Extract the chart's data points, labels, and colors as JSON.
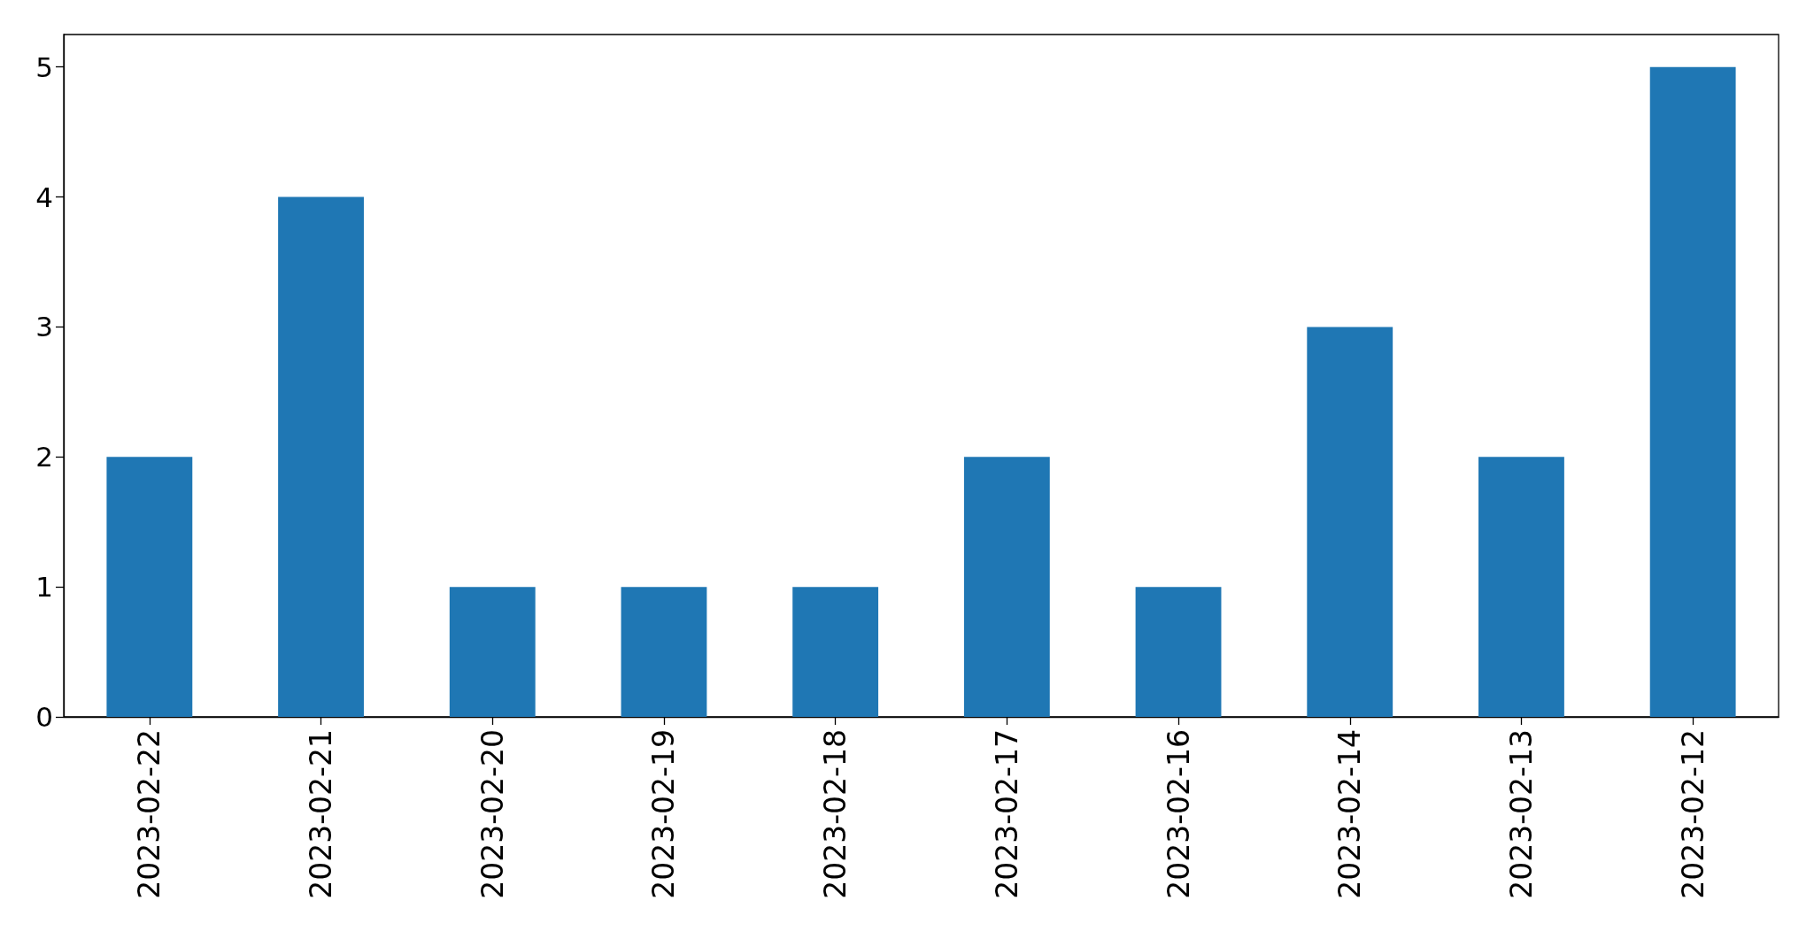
{
  "chart_data": {
    "type": "bar",
    "categories": [
      "2023-02-22",
      "2023-02-21",
      "2023-02-20",
      "2023-02-19",
      "2023-02-18",
      "2023-02-17",
      "2023-02-16",
      "2023-02-14",
      "2023-02-13",
      "2023-02-12"
    ],
    "values": [
      2,
      4,
      1,
      1,
      1,
      2,
      1,
      3,
      2,
      5
    ],
    "color": "#1f77b4",
    "ylim": [
      0,
      5.25
    ],
    "yticks": [
      0,
      1,
      2,
      3,
      4,
      5
    ],
    "grid": false
  }
}
